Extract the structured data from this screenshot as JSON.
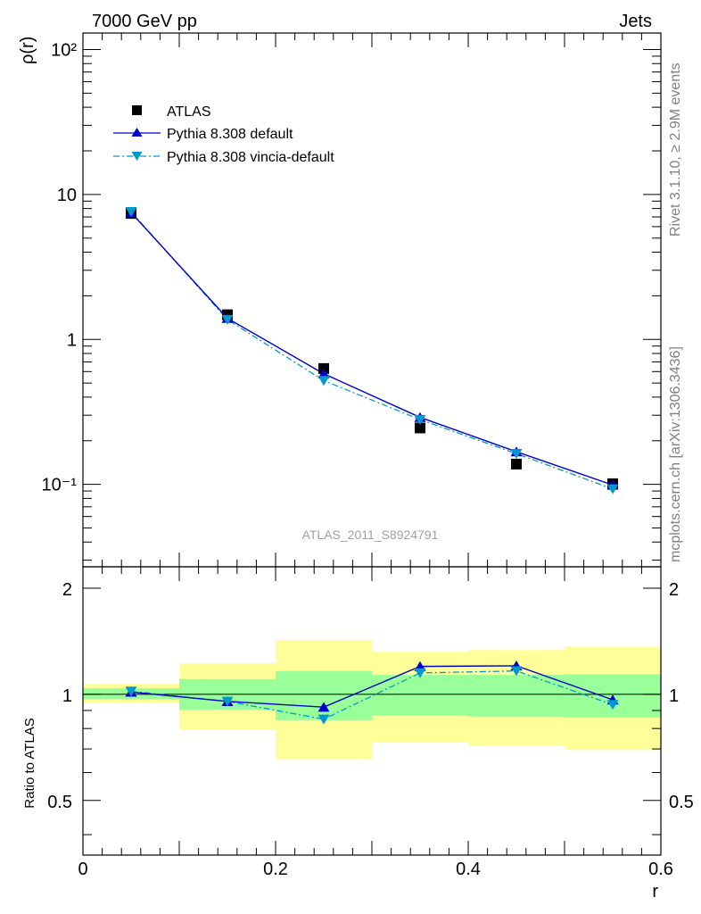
{
  "header": {
    "left": "7000 GeV pp",
    "right": "Jets"
  },
  "side_text": {
    "top": "Rivet 3.1.10, ≥ 2.9M events",
    "bottom": "mcplots.cern.ch [arXiv:1306.3436]"
  },
  "analysis_label": "ATLAS_2011_S8924791",
  "colors": {
    "data": "#000000",
    "default": "#0000cc",
    "vincia": "#0099cc",
    "band_inner": "#99ff99",
    "band_outer": "#ffff99"
  },
  "chart_data": [
    {
      "type": "line",
      "panel": "main",
      "ylabel": "ρ(r)",
      "yscale": "log",
      "xlim": [
        0,
        0.6
      ],
      "ylim": [
        0.027,
        130
      ],
      "ytick_labels": [
        "10⁻¹",
        "1",
        "10",
        "10²"
      ],
      "x": [
        0.05,
        0.15,
        0.25,
        0.35,
        0.45,
        0.55
      ],
      "legend_position": "top-left",
      "series": [
        {
          "name": "ATLAS",
          "marker": "square",
          "values": [
            7.4,
            1.48,
            0.63,
            0.245,
            0.138,
            0.101
          ]
        },
        {
          "name": "Pythia 8.308 default",
          "marker": "triangle-up",
          "line": "solid",
          "values": [
            7.5,
            1.4,
            0.58,
            0.29,
            0.168,
            0.099
          ]
        },
        {
          "name": "Pythia 8.308 vincia-default",
          "marker": "triangle-down",
          "line": "dash-dot",
          "values": [
            7.6,
            1.37,
            0.52,
            0.28,
            0.163,
            0.093
          ]
        }
      ]
    },
    {
      "type": "line",
      "panel": "ratio",
      "xlabel": "r",
      "ylabel": "Ratio to ATLAS",
      "xlim": [
        0,
        0.6
      ],
      "ylim": [
        0.35,
        2.3
      ],
      "xticks": [
        "0",
        "0.2",
        "0.4",
        "0.6"
      ],
      "yticks": [
        "0.5",
        "1",
        "2"
      ],
      "bins": [
        [
          0,
          0.1
        ],
        [
          0.1,
          0.2
        ],
        [
          0.2,
          0.3
        ],
        [
          0.3,
          0.4
        ],
        [
          0.4,
          0.5
        ],
        [
          0.5,
          0.6
        ]
      ],
      "band_inner": [
        [
          0.97,
          1.04
        ],
        [
          0.905,
          1.105
        ],
        [
          0.845,
          1.165
        ],
        [
          0.87,
          1.135
        ],
        [
          0.865,
          1.135
        ],
        [
          0.86,
          1.14
        ]
      ],
      "band_outer": [
        [
          0.945,
          1.07
        ],
        [
          0.795,
          1.225
        ],
        [
          0.655,
          1.425
        ],
        [
          0.73,
          1.32
        ],
        [
          0.715,
          1.335
        ],
        [
          0.695,
          1.365
        ]
      ],
      "x": [
        0.05,
        0.15,
        0.25,
        0.35,
        0.45,
        0.55
      ],
      "series": [
        {
          "name": "Pythia 8.308 default",
          "values": [
            1.015,
            0.955,
            0.92,
            1.2,
            1.205,
            0.965
          ]
        },
        {
          "name": "Pythia 8.308 vincia-default",
          "values": [
            1.02,
            0.955,
            0.85,
            1.15,
            1.165,
            0.935
          ]
        }
      ]
    }
  ]
}
